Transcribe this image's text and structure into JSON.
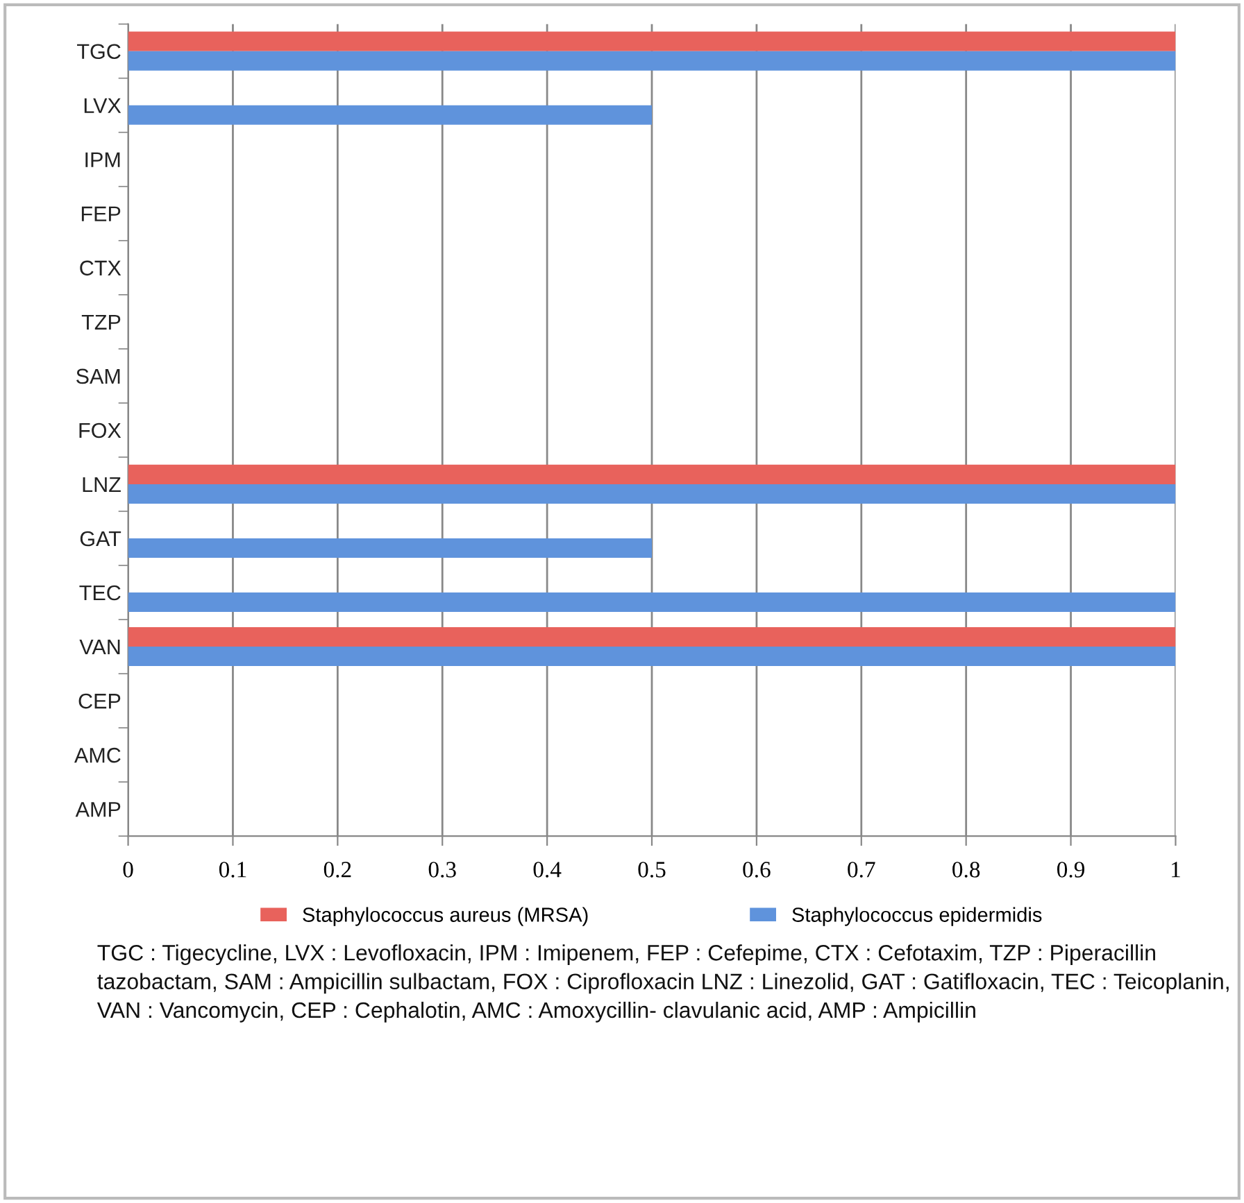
{
  "chart_data": {
    "type": "bar",
    "orientation": "horizontal",
    "categories": [
      "TGC",
      "LVX",
      "IPM",
      "FEP",
      "CTX",
      "TZP",
      "SAM",
      "FOX",
      "LNZ",
      "GAT",
      "TEC",
      "VAN",
      "CEP",
      "AMC",
      "AMP"
    ],
    "series": [
      {
        "name": "Staphylococcus aureus (MRSA)",
        "color": "#e8625c",
        "values": [
          1,
          0,
          0,
          0,
          0,
          0,
          0,
          0,
          1,
          0,
          0,
          1,
          0,
          0,
          0
        ]
      },
      {
        "name": "Staphylococcus epidermidis",
        "color": "#5f93dc",
        "values": [
          1,
          0.5,
          0,
          0,
          0,
          0,
          0,
          0,
          1,
          0.5,
          1,
          1,
          0,
          0,
          0
        ]
      }
    ],
    "xlim": [
      0,
      1
    ],
    "xticks": [
      0,
      0.1,
      0.2,
      0.3,
      0.4,
      0.5,
      0.6,
      0.7,
      0.8,
      0.9,
      1
    ],
    "grid": "x",
    "legend": "bottom",
    "annotations": [
      "TGC : Tigecycline, LVX : Levofloxacin, IPM : Imipenem, FEP : Cefepime, CTX : Cefotaxim, TZP : Piperacillin tazobactam, SAM : Ampicillin sulbactam, FOX : Ciprofloxacin LNZ : Linezolid, GAT : Gatifloxacin, TEC : Teicoplanin, VAN : Vancomycin, CEP : Cephalotin, AMC : Amoxycillin- clavulanic acid, AMP : Ampicillin"
    ]
  }
}
